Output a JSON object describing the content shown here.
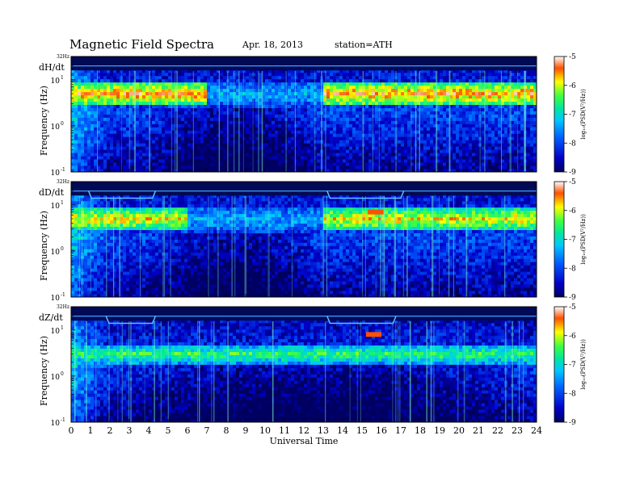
{
  "header": {
    "title": "Magnetic  Field  Spectra",
    "date": "Apr. 18, 2013",
    "station": "station=ATH"
  },
  "chart_data": [
    {
      "type": "heatmap",
      "panel_label": "dH/dt",
      "ylabel": "Frequency  (Hz)",
      "yscale": "log",
      "ylim": [
        0.1,
        32
      ],
      "yticks": [
        {
          "value": 32,
          "label": "32Hz"
        },
        {
          "value": 10,
          "base": "10",
          "exp": "1"
        },
        {
          "value": 1,
          "base": "10",
          "exp": "0"
        },
        {
          "value": 0.1,
          "base": "10",
          "exp": "-1"
        }
      ],
      "xlim": [
        0,
        24
      ],
      "colorbar": {
        "label": "log₁₀(PSD(V²/Hz))",
        "ticks": [
          -5,
          -6,
          -7,
          -8,
          -9
        ],
        "range": [
          -9,
          -5
        ]
      },
      "features": {
        "band_active": [
          [
            0,
            7
          ],
          [
            13,
            24
          ]
        ],
        "band_freq": 5,
        "band_peak_log_psd": -5.5,
        "top_line_steps": [],
        "hot_spot": null,
        "low_freq_blue": [
          4,
          13
        ]
      }
    },
    {
      "type": "heatmap",
      "panel_label": "dD/dt",
      "ylabel": "Frequency  (Hz)",
      "yscale": "log",
      "ylim": [
        0.1,
        32
      ],
      "yticks": [
        {
          "value": 32,
          "label": "32Hz"
        },
        {
          "value": 10,
          "base": "10",
          "exp": "1"
        },
        {
          "value": 1,
          "base": "10",
          "exp": "0"
        },
        {
          "value": 0.1,
          "base": "10",
          "exp": "-1"
        }
      ],
      "xlim": [
        0,
        24
      ],
      "colorbar": {
        "label": "log₁₀(PSD(V²/Hz))",
        "ticks": [
          -5,
          -6,
          -7,
          -8,
          -9
        ],
        "range": [
          -9,
          -5
        ]
      },
      "features": {
        "band_active": [
          [
            0,
            6
          ],
          [
            13,
            24
          ]
        ],
        "band_freq": 5,
        "band_peak_log_psd": -5.8,
        "top_line_steps": [
          [
            0.9,
            4.2
          ],
          [
            13.2,
            17
          ]
        ],
        "hot_spot": [
          15.7,
          7
        ],
        "low_freq_blue": [
          4,
          13
        ]
      }
    },
    {
      "type": "heatmap",
      "panel_label": "dZ/dt",
      "ylabel": "Frequency  (Hz)",
      "yscale": "log",
      "ylim": [
        0.1,
        32
      ],
      "yticks": [
        {
          "value": 32,
          "label": "32Hz"
        },
        {
          "value": 10,
          "base": "10",
          "exp": "1"
        },
        {
          "value": 1,
          "base": "10",
          "exp": "0"
        },
        {
          "value": 0.1,
          "base": "10",
          "exp": "-1"
        }
      ],
      "xlim": [
        0,
        24
      ],
      "colorbar": {
        "label": "log₁₀(PSD(V²/Hz))",
        "ticks": [
          -5,
          -6,
          -7,
          -8,
          -9
        ],
        "range": [
          -9,
          -5
        ]
      },
      "features": {
        "band_active": [
          [
            0,
            24
          ]
        ],
        "band_freq": 3,
        "band_peak_log_psd": -6.5,
        "top_line_steps": [
          [
            1.8,
            4.2
          ],
          [
            13.2,
            16.6
          ]
        ],
        "hot_spot": [
          15.6,
          8
        ],
        "low_freq_blue": [
          1,
          24
        ]
      }
    }
  ],
  "xaxis": {
    "label": "Universal Time",
    "ticks": [
      0,
      1,
      2,
      3,
      4,
      5,
      6,
      7,
      8,
      9,
      10,
      11,
      12,
      13,
      14,
      15,
      16,
      17,
      18,
      19,
      20,
      21,
      22,
      23,
      24
    ]
  }
}
